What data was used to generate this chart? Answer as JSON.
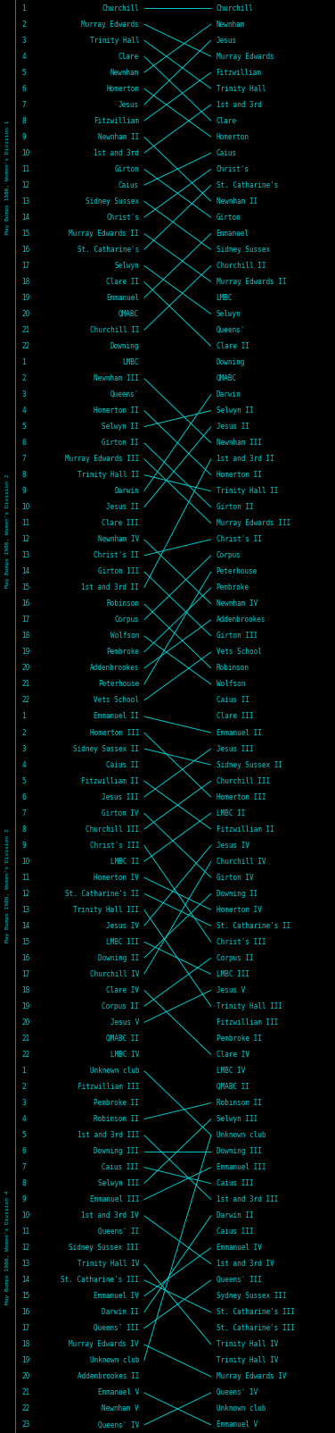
{
  "bg_div1": "#000000",
  "bg_div2": "#00007a",
  "bg_div3": "#000000",
  "bg_div4": "#00007a",
  "line_color": "#00cccc",
  "text_color": "#00cccc",
  "number_color": "#00cccc",
  "title_color": "#00cccc",
  "border_color": "#00cccc",
  "divisions": [
    {
      "name": "May Bumps 1986, Women's Division 1",
      "bg": "#000000",
      "start_labels": [
        "Churchill",
        "Murray Edwards",
        "Trinity Hall",
        "Clare",
        "Newnham",
        "Homerton",
        "Jesus",
        "Fitzwilliam",
        "Newnham II",
        "1st and 3rd",
        "Girton",
        "Caius",
        "Sidney Sussex",
        "Christ's",
        "Murray Edwards II",
        "St. Catharine's",
        "Selwyn",
        "Clare II",
        "Emmanuel",
        "QMABC",
        "Churchill II",
        "Downing"
      ],
      "end_labels": [
        "Churchill",
        "Newnham",
        "Jesus",
        "Murray Edwards",
        "Fitzwilliam",
        "Trinity Hall",
        "1st and 3rd",
        "Clare",
        "Homerton",
        "Caius",
        "Christ's",
        "St. Catharine's",
        "Newnham II",
        "Girton",
        "Emmanuel",
        "Sidney Sussex",
        "Churchill II",
        "Murray Edwards II",
        "LMBC",
        "Selwyn",
        "Queens'",
        "Clare II"
      ],
      "n": 22
    },
    {
      "name": "May Bumps 1986, Women's Division 2",
      "bg": "#00007a",
      "start_labels": [
        "LMBC",
        "Newnham III",
        "Queens'",
        "Homerton II",
        "Selwyn II",
        "Girton II",
        "Murray Edwards III",
        "Trinity Hall II",
        "Darwin",
        "Jesus II",
        "Clare III",
        "Newnham IV",
        "Christ's II",
        "Girton III",
        "1st and 3rd II",
        "Robinson",
        "Corpus",
        "Wolfson",
        "Pembroke",
        "Addenbrookes",
        "Peterhouse",
        "Vets School"
      ],
      "end_labels": [
        "Downing",
        "QMABC",
        "Darwin",
        "Selwyn II",
        "Jesus II",
        "Newnham III",
        "1st and 3rd II",
        "Homerton II",
        "Trinity Hall II",
        "Girton II",
        "Murray Edwards III",
        "Christ's II",
        "Corpus",
        "Peterhouse",
        "Pembroke",
        "Newnham IV",
        "Addenbrookes",
        "Girton III",
        "Vets School",
        "Robinson",
        "Wolfson",
        "Caius II"
      ],
      "n": 22
    },
    {
      "name": "May Bumps 1986, Women's Division 3",
      "bg": "#000000",
      "start_labels": [
        "Emmanuel II",
        "Homerton III",
        "Sidney Sussex II",
        "Caius II",
        "Fitzwilliam II",
        "Jesus III",
        "Girton IV",
        "Churchill III",
        "Christ's III",
        "LMBC II",
        "Homerton IV",
        "St. Catharine's II",
        "Trinity Hall III",
        "Jesus IV",
        "LMBC III",
        "Downing II",
        "Churchill IV",
        "Clare IV",
        "Corpus II",
        "Jesus V",
        "QMABC II",
        "LMBC IV"
      ],
      "end_labels": [
        "Clare III",
        "Emmanuel II",
        "Jesus III",
        "Sidney Sussex II",
        "Churchill III",
        "Homerton III",
        "LMBC II",
        "Fitzwilliam II",
        "Jesus IV",
        "Churchill IV",
        "Girton IV",
        "Downing II",
        "Homerton IV",
        "St. Catharine's II",
        "Christ's III",
        "Corpus II",
        "LMBC III",
        "Jesus V",
        "Trinity Hall III",
        "Fitzwilliam III",
        "Pembroke II",
        "Clare IV"
      ],
      "n": 22
    },
    {
      "name": "May Bumps 1986, Women's Division 4",
      "bg": "#00007a",
      "start_labels": [
        "Unknown club",
        "Fitzwilliam III",
        "Pembroke II",
        "Robinson II",
        "1st and 3rd III",
        "Downing III",
        "Caius III",
        "Selwyn III",
        "Emmanuel III",
        "1st and 3rd IV",
        "Queens' II",
        "Sidney Sussex III",
        "Trinity Hall IV",
        "St. Catharine's III",
        "Emmanuel IV",
        "Darwin II",
        "Queens' III",
        "Murray Edwards IV",
        "Unknown club",
        "Addenbrookes II",
        "Emmanuel V",
        "Newnham V",
        "Queens' IV"
      ],
      "end_labels": [
        "LMBC IV",
        "QMABC II",
        "Robinson II",
        "Selwyn III",
        "Unknown club",
        "Downing III",
        "Emmanuel III",
        "Caius III",
        "1st and 3rd III",
        "Darwin II",
        "Caius III",
        "Emmanuel IV",
        "1st and 3rd IV",
        "Queens' III",
        "Sydney Sussex III",
        "St. Catharine's III",
        "St. Catharine's III",
        "Trinity Hall IV",
        "Trinity Hall IV",
        "Murray Edwards IV",
        "Queens' IV",
        "Unknown club",
        "Emmanuel V"
      ],
      "n": 23
    }
  ],
  "fig_width": 3.76,
  "fig_height": 16.04,
  "dpi": 100
}
